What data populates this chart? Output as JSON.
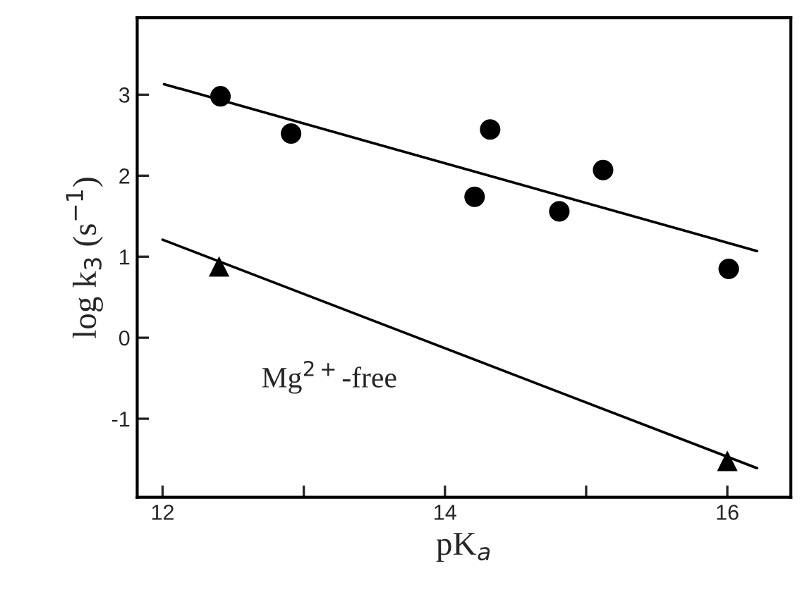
{
  "chart_data": {
    "type": "scatter",
    "xlabel": "pK$_{a}$",
    "ylabel": "log k$_{3}$ (s$^{−1}$)",
    "xlim": [
      11.82,
      16.45
    ],
    "ylim": [
      -1.97,
      3.95
    ],
    "xticks": [
      12,
      {
        "value": 13,
        "label": null
      },
      14,
      {
        "value": 15,
        "label": null
      },
      16
    ],
    "yticks": [
      -1,
      0,
      1,
      2,
      3
    ],
    "grid": false,
    "legend": false,
    "series": [
      {
        "marker": "circle",
        "color": "#000000",
        "x": [
          12.41,
          12.91,
          14.21,
          14.32,
          14.81,
          15.12,
          16.01
        ],
        "values": [
          2.98,
          2.52,
          1.74,
          2.57,
          1.56,
          2.07,
          0.85
        ]
      },
      {
        "marker": "triangle",
        "color": "#000000",
        "x": [
          12.4,
          16.0
        ],
        "values": [
          0.88,
          -1.52
        ]
      },
      {
        "type": "line",
        "marker": "none",
        "color": "#000000",
        "x": [
          12.01,
          16.21
        ],
        "values": [
          3.13,
          1.07
        ]
      },
      {
        "type": "line",
        "marker": "none",
        "color": "#000000",
        "x": [
          12.0,
          16.21
        ],
        "values": [
          1.21,
          -1.61
        ]
      }
    ],
    "annotations": [
      "Mg$^{2+}$-free"
    ]
  }
}
